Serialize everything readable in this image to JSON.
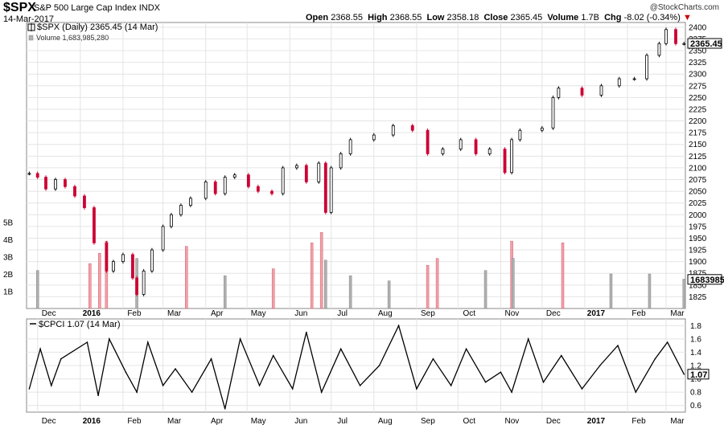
{
  "header": {
    "symbol": "$SPX",
    "name": "S&P 500 Large Cap Index",
    "exchange": "INDX",
    "date": "14-Mar-2017",
    "brand": "@StockCharts.com",
    "open_label": "Open",
    "open": "2368.55",
    "high_label": "High",
    "high": "2368.55",
    "low_label": "Low",
    "low": "2358.18",
    "close_label": "Close",
    "close": "2365.45",
    "volume_label": "Volume",
    "volume": "1.7B",
    "chg_label": "Chg",
    "chg": "-8.02 (-0.34%)",
    "chg_icon": "down-triangle-icon"
  },
  "legend": {
    "price": "$SPX (Daily) 2365.45 (14 Mar)",
    "volume": "Volume 1,683,985,280",
    "cpci": "$CPCI 1.07 (14 Mar)"
  },
  "colors": {
    "up": "#000000",
    "down": "#cc0033",
    "vol_up": "#b0b0b0",
    "vol_down": "#f2a0a8",
    "grid": "#e4e4e4"
  },
  "chart_data": [
    {
      "type": "line",
      "subtype": "candlestick",
      "title": "$SPX (Daily) 2365.45 (14 Mar)",
      "series": [
        {
          "name": "$SPX",
          "x": [
            "2015-11-25",
            "2015-12-01",
            "2015-12-07",
            "2015-12-14",
            "2015-12-21",
            "2015-12-28",
            "2016-01-04",
            "2016-01-11",
            "2016-01-20",
            "2016-01-25",
            "2016-02-01",
            "2016-02-08",
            "2016-02-11",
            "2016-02-16",
            "2016-02-22",
            "2016-03-01",
            "2016-03-07",
            "2016-03-14",
            "2016-03-21",
            "2016-04-01",
            "2016-04-08",
            "2016-04-15",
            "2016-04-22",
            "2016-05-02",
            "2016-05-09",
            "2016-05-19",
            "2016-05-27",
            "2016-06-06",
            "2016-06-13",
            "2016-06-22",
            "2016-06-27",
            "2016-07-01",
            "2016-07-08",
            "2016-07-15",
            "2016-08-01",
            "2016-08-15",
            "2016-08-29",
            "2016-09-09",
            "2016-09-20",
            "2016-10-03",
            "2016-10-14",
            "2016-10-24",
            "2016-11-04",
            "2016-11-09",
            "2016-11-15",
            "2016-12-01",
            "2016-12-09",
            "2016-12-13",
            "2016-12-30",
            "2017-01-13",
            "2017-01-26",
            "2017-02-06",
            "2017-02-15",
            "2017-02-24",
            "2017-03-01",
            "2017-03-08",
            "2017-03-14"
          ],
          "close": [
            2088,
            2080,
            2055,
            2075,
            2060,
            2040,
            2015,
            1940,
            1880,
            1900,
            1915,
            1865,
            1830,
            1880,
            1925,
            1975,
            2000,
            2020,
            2035,
            2070,
            2045,
            2080,
            2085,
            2060,
            2050,
            2045,
            2100,
            2105,
            2070,
            2110,
            2005,
            2100,
            2130,
            2160,
            2170,
            2190,
            2180,
            2130,
            2140,
            2160,
            2130,
            2140,
            2090,
            2160,
            2180,
            2185,
            2250,
            2270,
            2255,
            2275,
            2290,
            2290,
            2340,
            2365,
            2395,
            2365,
            2365
          ]
        }
      ],
      "ylim": [
        1800,
        2410
      ],
      "y_ticks": [
        1825,
        1850,
        1875,
        1900,
        1925,
        1950,
        1975,
        2000,
        2025,
        2050,
        2075,
        2100,
        2125,
        2150,
        2175,
        2200,
        2225,
        2250,
        2275,
        2300,
        2325,
        2350,
        2375,
        2400
      ],
      "last_label": "2365.45",
      "x_tick_labels": [
        "Dec",
        "2016",
        "Feb",
        "Mar",
        "Apr",
        "May",
        "Jun",
        "Jul",
        "Aug",
        "Sep",
        "Oct",
        "Nov",
        "Dec",
        "2017",
        "Feb",
        "Mar"
      ]
    },
    {
      "type": "bar",
      "title": "Volume 1,683,985,280",
      "volume_ticks": [
        "1B",
        "2B",
        "3B",
        "4B",
        "5B"
      ],
      "volume_tick_values": [
        1,
        2,
        3,
        4,
        5
      ],
      "last_label": "1683985",
      "series": [
        {
          "name": "Volume (B)",
          "x": [
            "2015-12-01",
            "2016-01-08",
            "2016-01-15",
            "2016-01-20",
            "2016-02-11",
            "2016-03-18",
            "2016-04-15",
            "2016-05-20",
            "2016-06-17",
            "2016-06-24",
            "2016-06-27",
            "2016-07-15",
            "2016-08-12",
            "2016-09-09",
            "2016-09-16",
            "2016-10-21",
            "2016-11-09",
            "2016-11-10",
            "2016-12-16",
            "2017-01-20",
            "2017-02-17",
            "2017-03-14"
          ],
          "values": [
            2.2,
            2.6,
            3.2,
            3.9,
            2.9,
            3.6,
            1.9,
            2.3,
            3.8,
            4.4,
            2.8,
            1.9,
            1.6,
            2.5,
            2.9,
            2.2,
            3.9,
            2.9,
            3.8,
            2.0,
            2.0,
            1.7
          ]
        }
      ]
    },
    {
      "type": "line",
      "title": "$CPCI 1.07 (14 Mar)",
      "series": [
        {
          "name": "$CPCI",
          "x": [
            "2015-11-25",
            "2015-12-03",
            "2015-12-11",
            "2015-12-18",
            "2016-01-06",
            "2016-01-14",
            "2016-01-22",
            "2016-02-03",
            "2016-02-11",
            "2016-02-19",
            "2016-03-01",
            "2016-03-10",
            "2016-03-22",
            "2016-04-05",
            "2016-04-15",
            "2016-04-26",
            "2016-05-10",
            "2016-05-20",
            "2016-06-03",
            "2016-06-13",
            "2016-06-24",
            "2016-07-08",
            "2016-07-22",
            "2016-08-05",
            "2016-08-19",
            "2016-09-01",
            "2016-09-13",
            "2016-09-26",
            "2016-10-07",
            "2016-10-21",
            "2016-11-01",
            "2016-11-09",
            "2016-11-21",
            "2016-12-02",
            "2016-12-15",
            "2016-12-30",
            "2017-01-12",
            "2017-01-25",
            "2017-02-07",
            "2017-02-21",
            "2017-03-02",
            "2017-03-14"
          ],
          "values": [
            0.85,
            1.45,
            0.9,
            1.3,
            1.55,
            0.75,
            1.6,
            1.1,
            0.8,
            1.55,
            0.9,
            1.15,
            0.8,
            1.3,
            0.55,
            1.6,
            0.9,
            1.35,
            0.85,
            1.7,
            0.8,
            1.45,
            0.9,
            1.2,
            1.8,
            0.85,
            1.3,
            0.9,
            1.45,
            0.95,
            1.1,
            0.8,
            1.6,
            0.95,
            1.35,
            0.85,
            1.2,
            1.5,
            0.8,
            1.3,
            1.55,
            1.07
          ]
        }
      ],
      "ylim": [
        0.5,
        1.9
      ],
      "y_ticks": [
        0.6,
        0.8,
        1.0,
        1.2,
        1.4,
        1.6,
        1.8
      ],
      "last_label": "1.07",
      "x_tick_labels": [
        "Dec",
        "2016",
        "Feb",
        "Mar",
        "Apr",
        "May",
        "Jun",
        "Jul",
        "Aug",
        "Sep",
        "Oct",
        "Nov",
        "Dec",
        "2017",
        "Feb",
        "Mar"
      ]
    }
  ]
}
